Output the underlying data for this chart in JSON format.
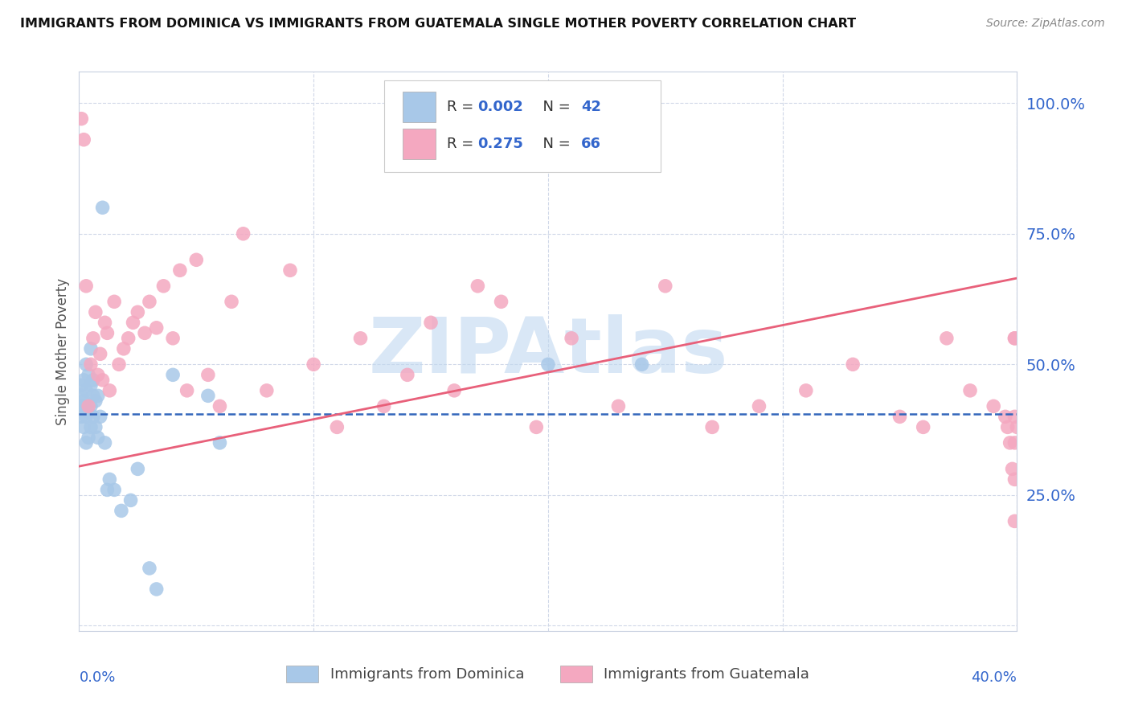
{
  "title": "IMMIGRANTS FROM DOMINICA VS IMMIGRANTS FROM GUATEMALA SINGLE MOTHER POVERTY CORRELATION CHART",
  "source": "Source: ZipAtlas.com",
  "ylabel": "Single Mother Poverty",
  "right_yticks": [
    0.0,
    0.25,
    0.5,
    0.75,
    1.0
  ],
  "right_yticklabels": [
    "",
    "25.0%",
    "50.0%",
    "75.0%",
    "100.0%"
  ],
  "xlim": [
    0.0,
    0.4
  ],
  "ylim": [
    -0.01,
    1.06
  ],
  "dominica_color": "#a8c8e8",
  "guatemala_color": "#f4a8c0",
  "dominica_trend_color": "#3366bb",
  "guatemala_trend_color": "#e8607a",
  "watermark": "ZIPAtlas",
  "watermark_color": "#c0d8f0",
  "legend_label1": "Immigrants from Dominica",
  "legend_label2": "Immigrants from Guatemala",
  "dom_trend_y": 0.405,
  "guat_trend_x0": 0.0,
  "guat_trend_y0": 0.305,
  "guat_trend_x1": 0.4,
  "guat_trend_y1": 0.665,
  "dominica_x": [
    0.001,
    0.001,
    0.001,
    0.001,
    0.002,
    0.002,
    0.002,
    0.002,
    0.003,
    0.003,
    0.003,
    0.003,
    0.004,
    0.004,
    0.004,
    0.005,
    0.005,
    0.005,
    0.005,
    0.006,
    0.006,
    0.006,
    0.007,
    0.007,
    0.008,
    0.008,
    0.009,
    0.01,
    0.011,
    0.012,
    0.013,
    0.015,
    0.018,
    0.022,
    0.025,
    0.03,
    0.033,
    0.04,
    0.055,
    0.06,
    0.2,
    0.24
  ],
  "dominica_y": [
    0.42,
    0.46,
    0.4,
    0.44,
    0.38,
    0.42,
    0.47,
    0.43,
    0.35,
    0.4,
    0.45,
    0.5,
    0.36,
    0.41,
    0.48,
    0.38,
    0.42,
    0.46,
    0.53,
    0.44,
    0.4,
    0.47,
    0.38,
    0.43,
    0.36,
    0.44,
    0.4,
    0.8,
    0.35,
    0.26,
    0.28,
    0.26,
    0.22,
    0.24,
    0.3,
    0.11,
    0.07,
    0.48,
    0.44,
    0.35,
    0.5,
    0.5
  ],
  "guatemala_x": [
    0.001,
    0.002,
    0.003,
    0.004,
    0.005,
    0.006,
    0.007,
    0.008,
    0.009,
    0.01,
    0.011,
    0.012,
    0.013,
    0.015,
    0.017,
    0.019,
    0.021,
    0.023,
    0.025,
    0.028,
    0.03,
    0.033,
    0.036,
    0.04,
    0.043,
    0.046,
    0.05,
    0.055,
    0.06,
    0.065,
    0.07,
    0.08,
    0.09,
    0.1,
    0.11,
    0.12,
    0.13,
    0.14,
    0.15,
    0.16,
    0.17,
    0.18,
    0.195,
    0.21,
    0.23,
    0.25,
    0.27,
    0.29,
    0.31,
    0.33,
    0.35,
    0.36,
    0.37,
    0.38,
    0.39,
    0.395,
    0.396,
    0.397,
    0.398,
    0.399,
    0.399,
    0.399,
    0.399,
    0.399,
    0.399,
    0.4
  ],
  "guatemala_y": [
    0.97,
    0.93,
    0.65,
    0.42,
    0.5,
    0.55,
    0.6,
    0.48,
    0.52,
    0.47,
    0.58,
    0.56,
    0.45,
    0.62,
    0.5,
    0.53,
    0.55,
    0.58,
    0.6,
    0.56,
    0.62,
    0.57,
    0.65,
    0.55,
    0.68,
    0.45,
    0.7,
    0.48,
    0.42,
    0.62,
    0.75,
    0.45,
    0.68,
    0.5,
    0.38,
    0.55,
    0.42,
    0.48,
    0.58,
    0.45,
    0.65,
    0.62,
    0.38,
    0.55,
    0.42,
    0.65,
    0.38,
    0.42,
    0.45,
    0.5,
    0.4,
    0.38,
    0.55,
    0.45,
    0.42,
    0.4,
    0.38,
    0.35,
    0.3,
    0.2,
    0.55,
    0.28,
    0.4,
    0.35,
    0.55,
    0.38
  ]
}
